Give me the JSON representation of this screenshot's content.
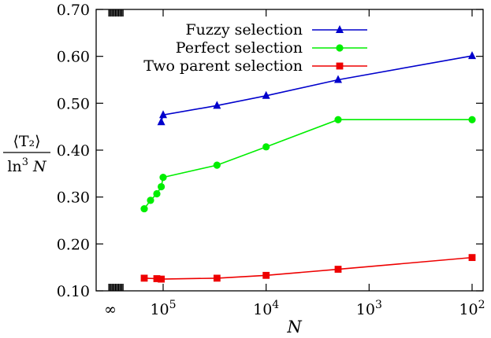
{
  "chart_data": {
    "type": "line",
    "title": "",
    "xlabel": "N",
    "ylabel": {
      "numerator": "⟨T₂⟩",
      "denominator_prefix": "ln",
      "denominator_sup": "3",
      "denominator_var": "N"
    },
    "x_scale": "reciprocal-log (plotted as log10(1/N); 1/N = 0 shown as ∞)",
    "xlim_reciprocal": [
      0,
      0.01
    ],
    "ylim": [
      0.1,
      0.7
    ],
    "y_ticks": [
      "0.10",
      "0.20",
      "0.30",
      "0.40",
      "0.50",
      "0.60",
      "0.70"
    ],
    "x_ticks": [
      {
        "label_base": "∞",
        "label_exp": "",
        "N": "inf"
      },
      {
        "label_base": "10",
        "label_exp": "5",
        "N": 100000
      },
      {
        "label_base": "10",
        "label_exp": "4",
        "N": 10000
      },
      {
        "label_base": "10",
        "label_exp": "3",
        "N": 1000
      },
      {
        "label_base": "10",
        "label_exp": "2",
        "N": 100
      }
    ],
    "legend_placement": "top-right",
    "grid": false,
    "series": [
      {
        "name": "Fuzzy selection",
        "color": "#0000cc",
        "marker": "triangle",
        "N": [
          200000,
          100000,
          30000,
          10000,
          2000,
          100
        ],
        "y": [
          0.46,
          0.475,
          0.495,
          0.516,
          0.55,
          0.601
        ]
      },
      {
        "name": "Perfect selection",
        "color": "#00ee00",
        "marker": "circle",
        "N": [
          100000000,
          10000000,
          1000000,
          200000,
          100000,
          30000,
          10000,
          2000,
          100
        ],
        "y": [
          0.275,
          0.293,
          0.307,
          0.322,
          0.342,
          0.368,
          0.407,
          0.465,
          0.465
        ]
      },
      {
        "name": "Two parent selection",
        "color": "#ee0000",
        "marker": "square",
        "N": [
          100000000,
          1000000,
          200000,
          30000,
          10000,
          2000,
          100
        ],
        "y": [
          0.127,
          0.126,
          0.125,
          0.127,
          0.133,
          0.146,
          0.171
        ]
      }
    ]
  }
}
